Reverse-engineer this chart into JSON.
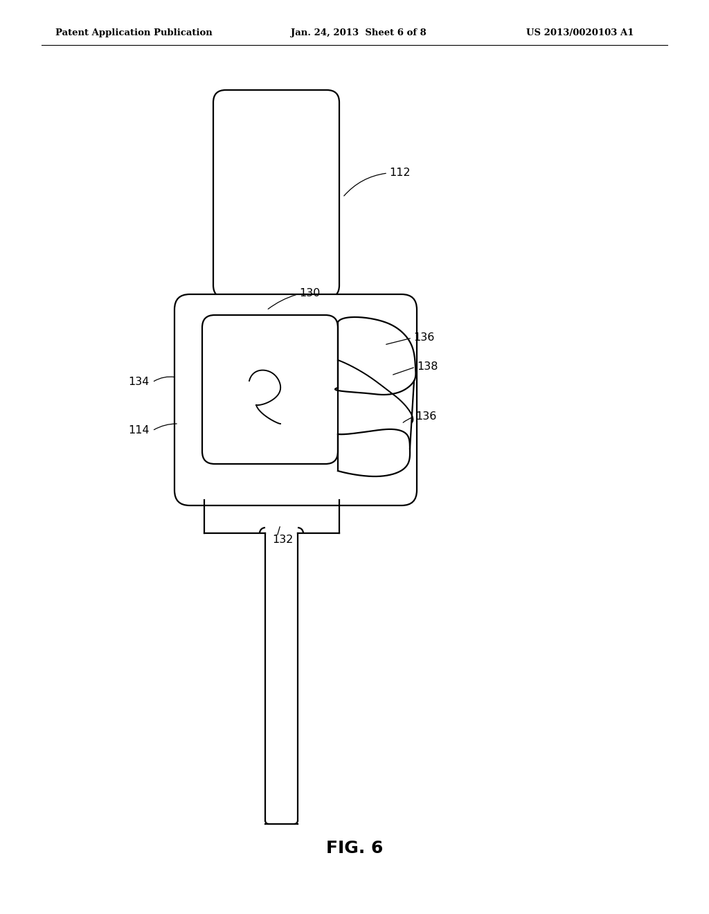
{
  "bg_color": "#ffffff",
  "line_color": "#000000",
  "line_width": 1.6,
  "header_left": "Patent Application Publication",
  "header_mid": "Jan. 24, 2013  Sheet 6 of 8",
  "header_right": "US 2013/0020103 A1",
  "footer": "FIG. 6"
}
